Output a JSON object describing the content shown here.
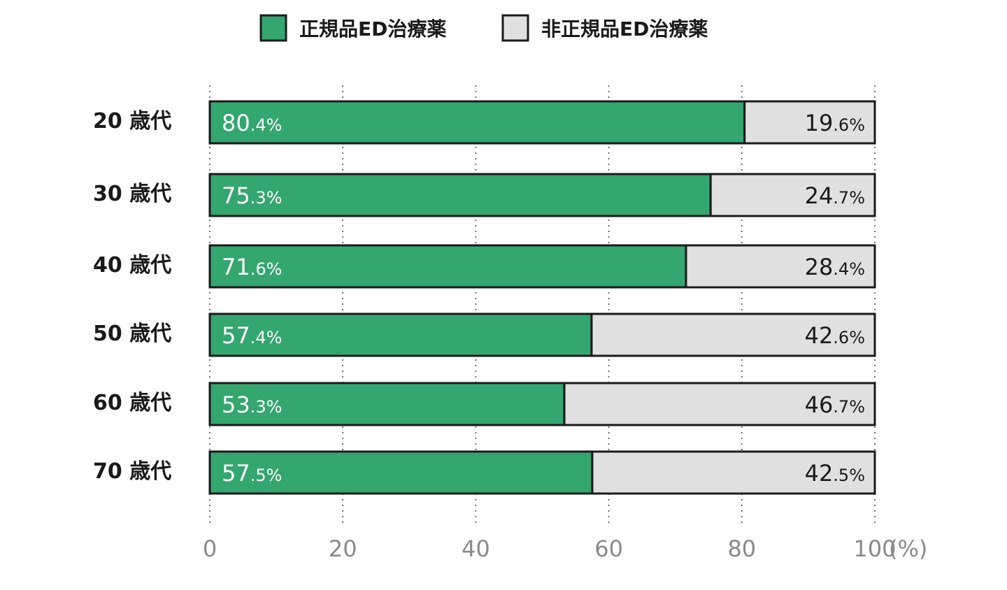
{
  "chart_data": {
    "type": "bar",
    "orientation": "horizontal",
    "stacked": true,
    "categories": [
      "20 歳代",
      "30 歳代",
      "40 歳代",
      "50 歳代",
      "60 歳代",
      "70 歳代"
    ],
    "series": [
      {
        "name": "正規品ED治療薬",
        "color": "#34a66f",
        "values": [
          80.4,
          75.3,
          71.6,
          57.4,
          53.3,
          57.5
        ],
        "labels": [
          [
            "80",
            ".4%"
          ],
          [
            "75",
            ".3%"
          ],
          [
            "71",
            ".6%"
          ],
          [
            "57",
            ".4%"
          ],
          [
            "53",
            ".3%"
          ],
          [
            "57",
            ".5%"
          ]
        ]
      },
      {
        "name": "非正規品ED治療薬",
        "color": "#e0e0e0",
        "values": [
          19.6,
          24.7,
          28.4,
          42.6,
          46.7,
          42.5
        ],
        "labels": [
          [
            "19",
            ".6%"
          ],
          [
            "24",
            ".7%"
          ],
          [
            "28",
            ".4%"
          ],
          [
            "42",
            ".6%"
          ],
          [
            "46",
            ".7%"
          ],
          [
            "42",
            ".5%"
          ]
        ]
      }
    ],
    "xlim": [
      0,
      100
    ],
    "xticks": [
      "0",
      "20",
      "40",
      "60",
      "80",
      "100"
    ],
    "xunit": "(%)",
    "grid": "vertical-dotted",
    "legend": "top-center"
  }
}
